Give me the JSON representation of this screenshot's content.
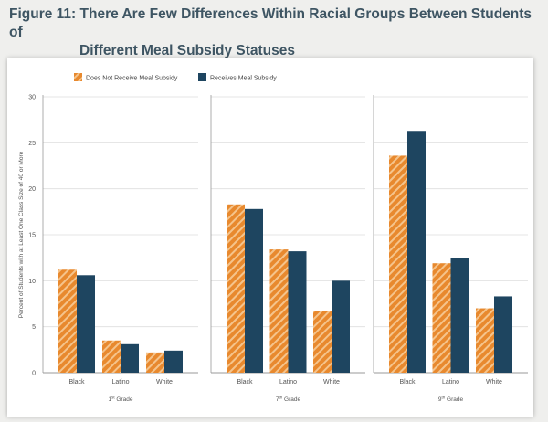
{
  "figure": {
    "title_line1": "Figure 11: There Are Few Differences Within Racial Groups Between Students of",
    "title_line2": "Different Meal Subsidy Statuses"
  },
  "colors": {
    "orange": "#e8892e",
    "orange_stripe": "#f5c48c",
    "navy": "#1e4560",
    "grid": "#dddddd",
    "axis": "#999999"
  },
  "chart_data": {
    "type": "bar",
    "title": "",
    "ylabel": "Percent of Students with at Least One Class Size of 40 or More",
    "ylim": [
      0,
      30
    ],
    "yticks": [
      0,
      5,
      10,
      15,
      20,
      25,
      30
    ],
    "legend_position": "top-left",
    "series": [
      {
        "name": "Does Not Receive Meal Subsidy",
        "color": "#e8892e",
        "pattern": "diagonal-stripes"
      },
      {
        "name": "Receives Meal Subsidy",
        "color": "#1e4560",
        "pattern": "solid"
      }
    ],
    "panels": [
      {
        "grade": "1",
        "grade_suffix": "st",
        "grade_word": " Grade",
        "categories": [
          "Black",
          "Latino",
          "White"
        ],
        "values": [
          [
            11.2,
            10.6
          ],
          [
            3.5,
            3.1
          ],
          [
            2.2,
            2.4
          ]
        ]
      },
      {
        "grade": "7",
        "grade_suffix": "th",
        "grade_word": " Grade",
        "categories": [
          "Black",
          "Latino",
          "White"
        ],
        "values": [
          [
            18.3,
            17.8
          ],
          [
            13.4,
            13.2
          ],
          [
            6.7,
            10.0
          ]
        ]
      },
      {
        "grade": "9",
        "grade_suffix": "th",
        "grade_word": " Grade",
        "categories": [
          "Black",
          "Latino",
          "White"
        ],
        "values": [
          [
            23.6,
            26.3
          ],
          [
            11.9,
            12.5
          ],
          [
            7.0,
            8.3
          ]
        ]
      }
    ]
  }
}
